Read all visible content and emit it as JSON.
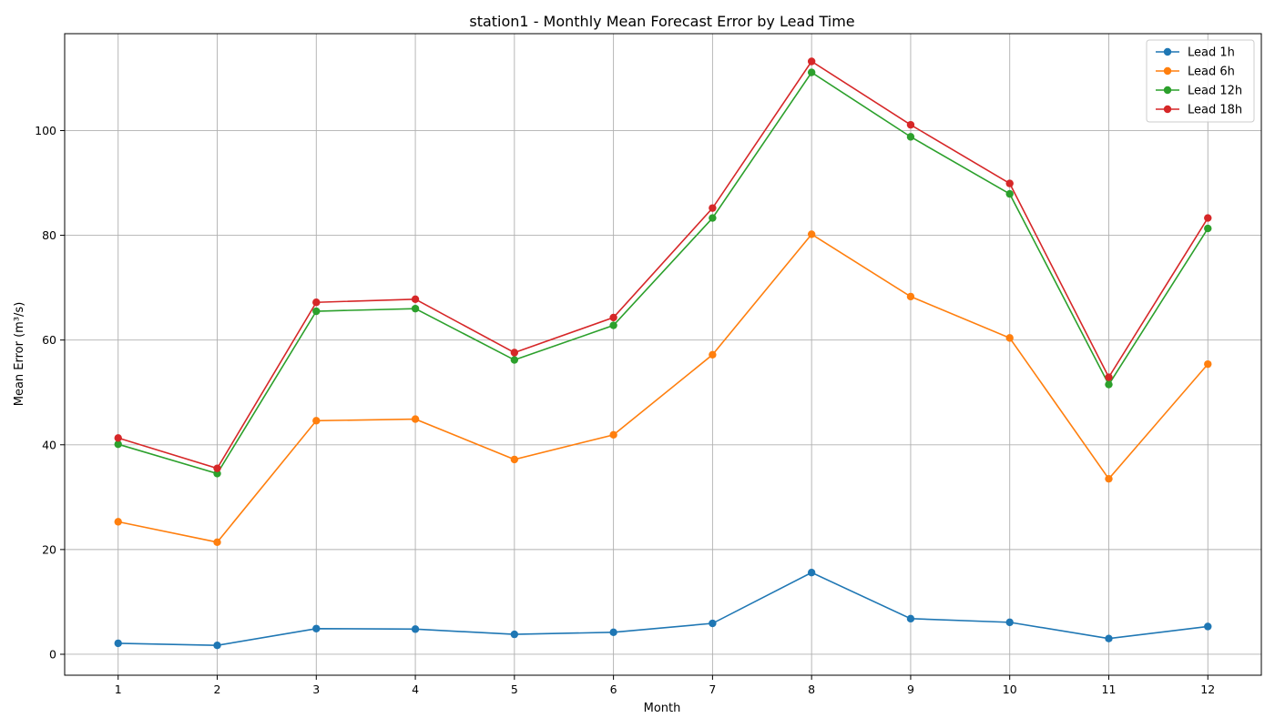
{
  "chart_data": {
    "type": "line",
    "title": "station1 - Monthly Mean Forecast Error by Lead Time",
    "xlabel": "Month",
    "ylabel": "Mean Error (m³/s)",
    "x": [
      1,
      2,
      3,
      4,
      5,
      6,
      7,
      8,
      9,
      10,
      11,
      12
    ],
    "xlim": [
      0.46,
      12.54
    ],
    "ylim": [
      -4,
      118.5
    ],
    "yticks": [
      0,
      20,
      40,
      60,
      80,
      100
    ],
    "grid": true,
    "legend_position": "top-right",
    "series": [
      {
        "name": "Lead 1h",
        "color": "#1f77b4",
        "values": [
          2.1,
          1.7,
          4.9,
          4.8,
          3.8,
          4.2,
          5.9,
          15.6,
          6.8,
          6.1,
          3.0,
          5.3
        ]
      },
      {
        "name": "Lead 6h",
        "color": "#ff7f0e",
        "values": [
          25.3,
          21.4,
          44.6,
          44.9,
          37.2,
          41.9,
          57.2,
          80.2,
          68.3,
          60.4,
          33.5,
          55.4
        ]
      },
      {
        "name": "Lead 12h",
        "color": "#2ca02c",
        "values": [
          40.1,
          34.5,
          65.5,
          66.0,
          56.2,
          62.8,
          83.3,
          111.1,
          98.8,
          87.9,
          51.5,
          81.3
        ]
      },
      {
        "name": "Lead 18h",
        "color": "#d62728",
        "values": [
          41.3,
          35.5,
          67.2,
          67.8,
          57.6,
          64.3,
          85.2,
          113.2,
          101.1,
          89.9,
          52.9,
          83.3
        ]
      }
    ]
  }
}
